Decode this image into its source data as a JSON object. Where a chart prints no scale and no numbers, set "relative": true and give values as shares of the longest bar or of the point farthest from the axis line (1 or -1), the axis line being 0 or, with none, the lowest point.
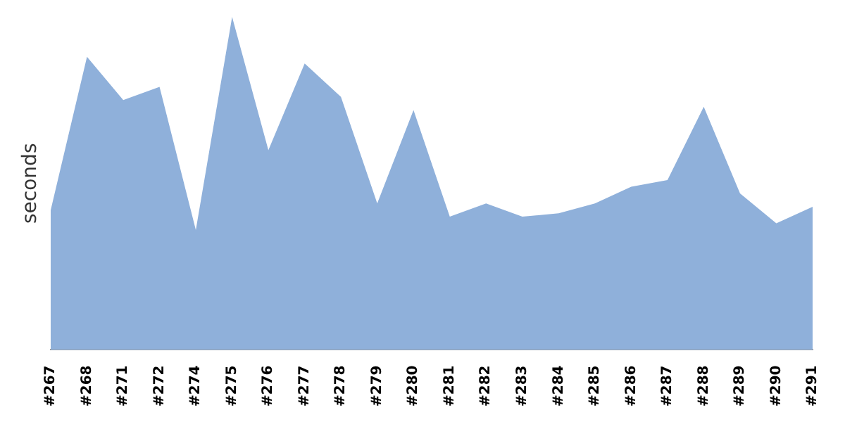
{
  "chart_data": {
    "type": "area",
    "ylabel": "seconds",
    "relative": true,
    "categories": [
      "#267",
      "#268",
      "#271",
      "#272",
      "#274",
      "#275",
      "#276",
      "#277",
      "#278",
      "#279",
      "#280",
      "#281",
      "#282",
      "#283",
      "#284",
      "#285",
      "#286",
      "#287",
      "#288",
      "#289",
      "#290",
      "#291"
    ],
    "series": [
      {
        "color": "#8fb0da",
        "values": [
          0.42,
          0.88,
          0.75,
          0.79,
          0.36,
          1,
          0.6,
          0.86,
          0.76,
          0.44,
          0.72,
          0.4,
          0.44,
          0.4,
          0.41,
          0.44,
          0.49,
          0.51,
          0.73,
          0.47,
          0.38,
          0.43
        ]
      }
    ],
    "grid": false,
    "legend": false
  }
}
